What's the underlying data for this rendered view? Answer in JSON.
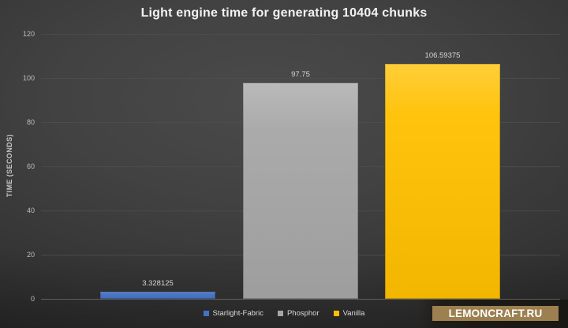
{
  "title": "Light engine time for generating 10404 chunks",
  "chart_data": {
    "type": "bar",
    "categories": [
      "Starlight-Fabric",
      "Phosphor",
      "Vanilla"
    ],
    "values": [
      3.328125,
      97.75,
      106.59375
    ],
    "value_labels": [
      "3.328125",
      "97.75",
      "106.59375"
    ],
    "colors": [
      "#4472C4",
      "#A6A6A6",
      "#FFC000"
    ],
    "title": "Light engine time for generating 10404 chunks",
    "xlabel": "",
    "ylabel": "TIME (SECONDS)",
    "ylim": [
      0,
      120
    ],
    "yticks": [
      0,
      20,
      40,
      60,
      80,
      100,
      120
    ],
    "grid": true,
    "legend_position": "bottom",
    "legend": [
      "Starlight-Fabric",
      "Phosphor",
      "Vanilla"
    ]
  },
  "watermark": {
    "text": "LEMONCRAFT.RU",
    "bg_color": "#9C8050",
    "text_color": "#FFFFFF"
  }
}
